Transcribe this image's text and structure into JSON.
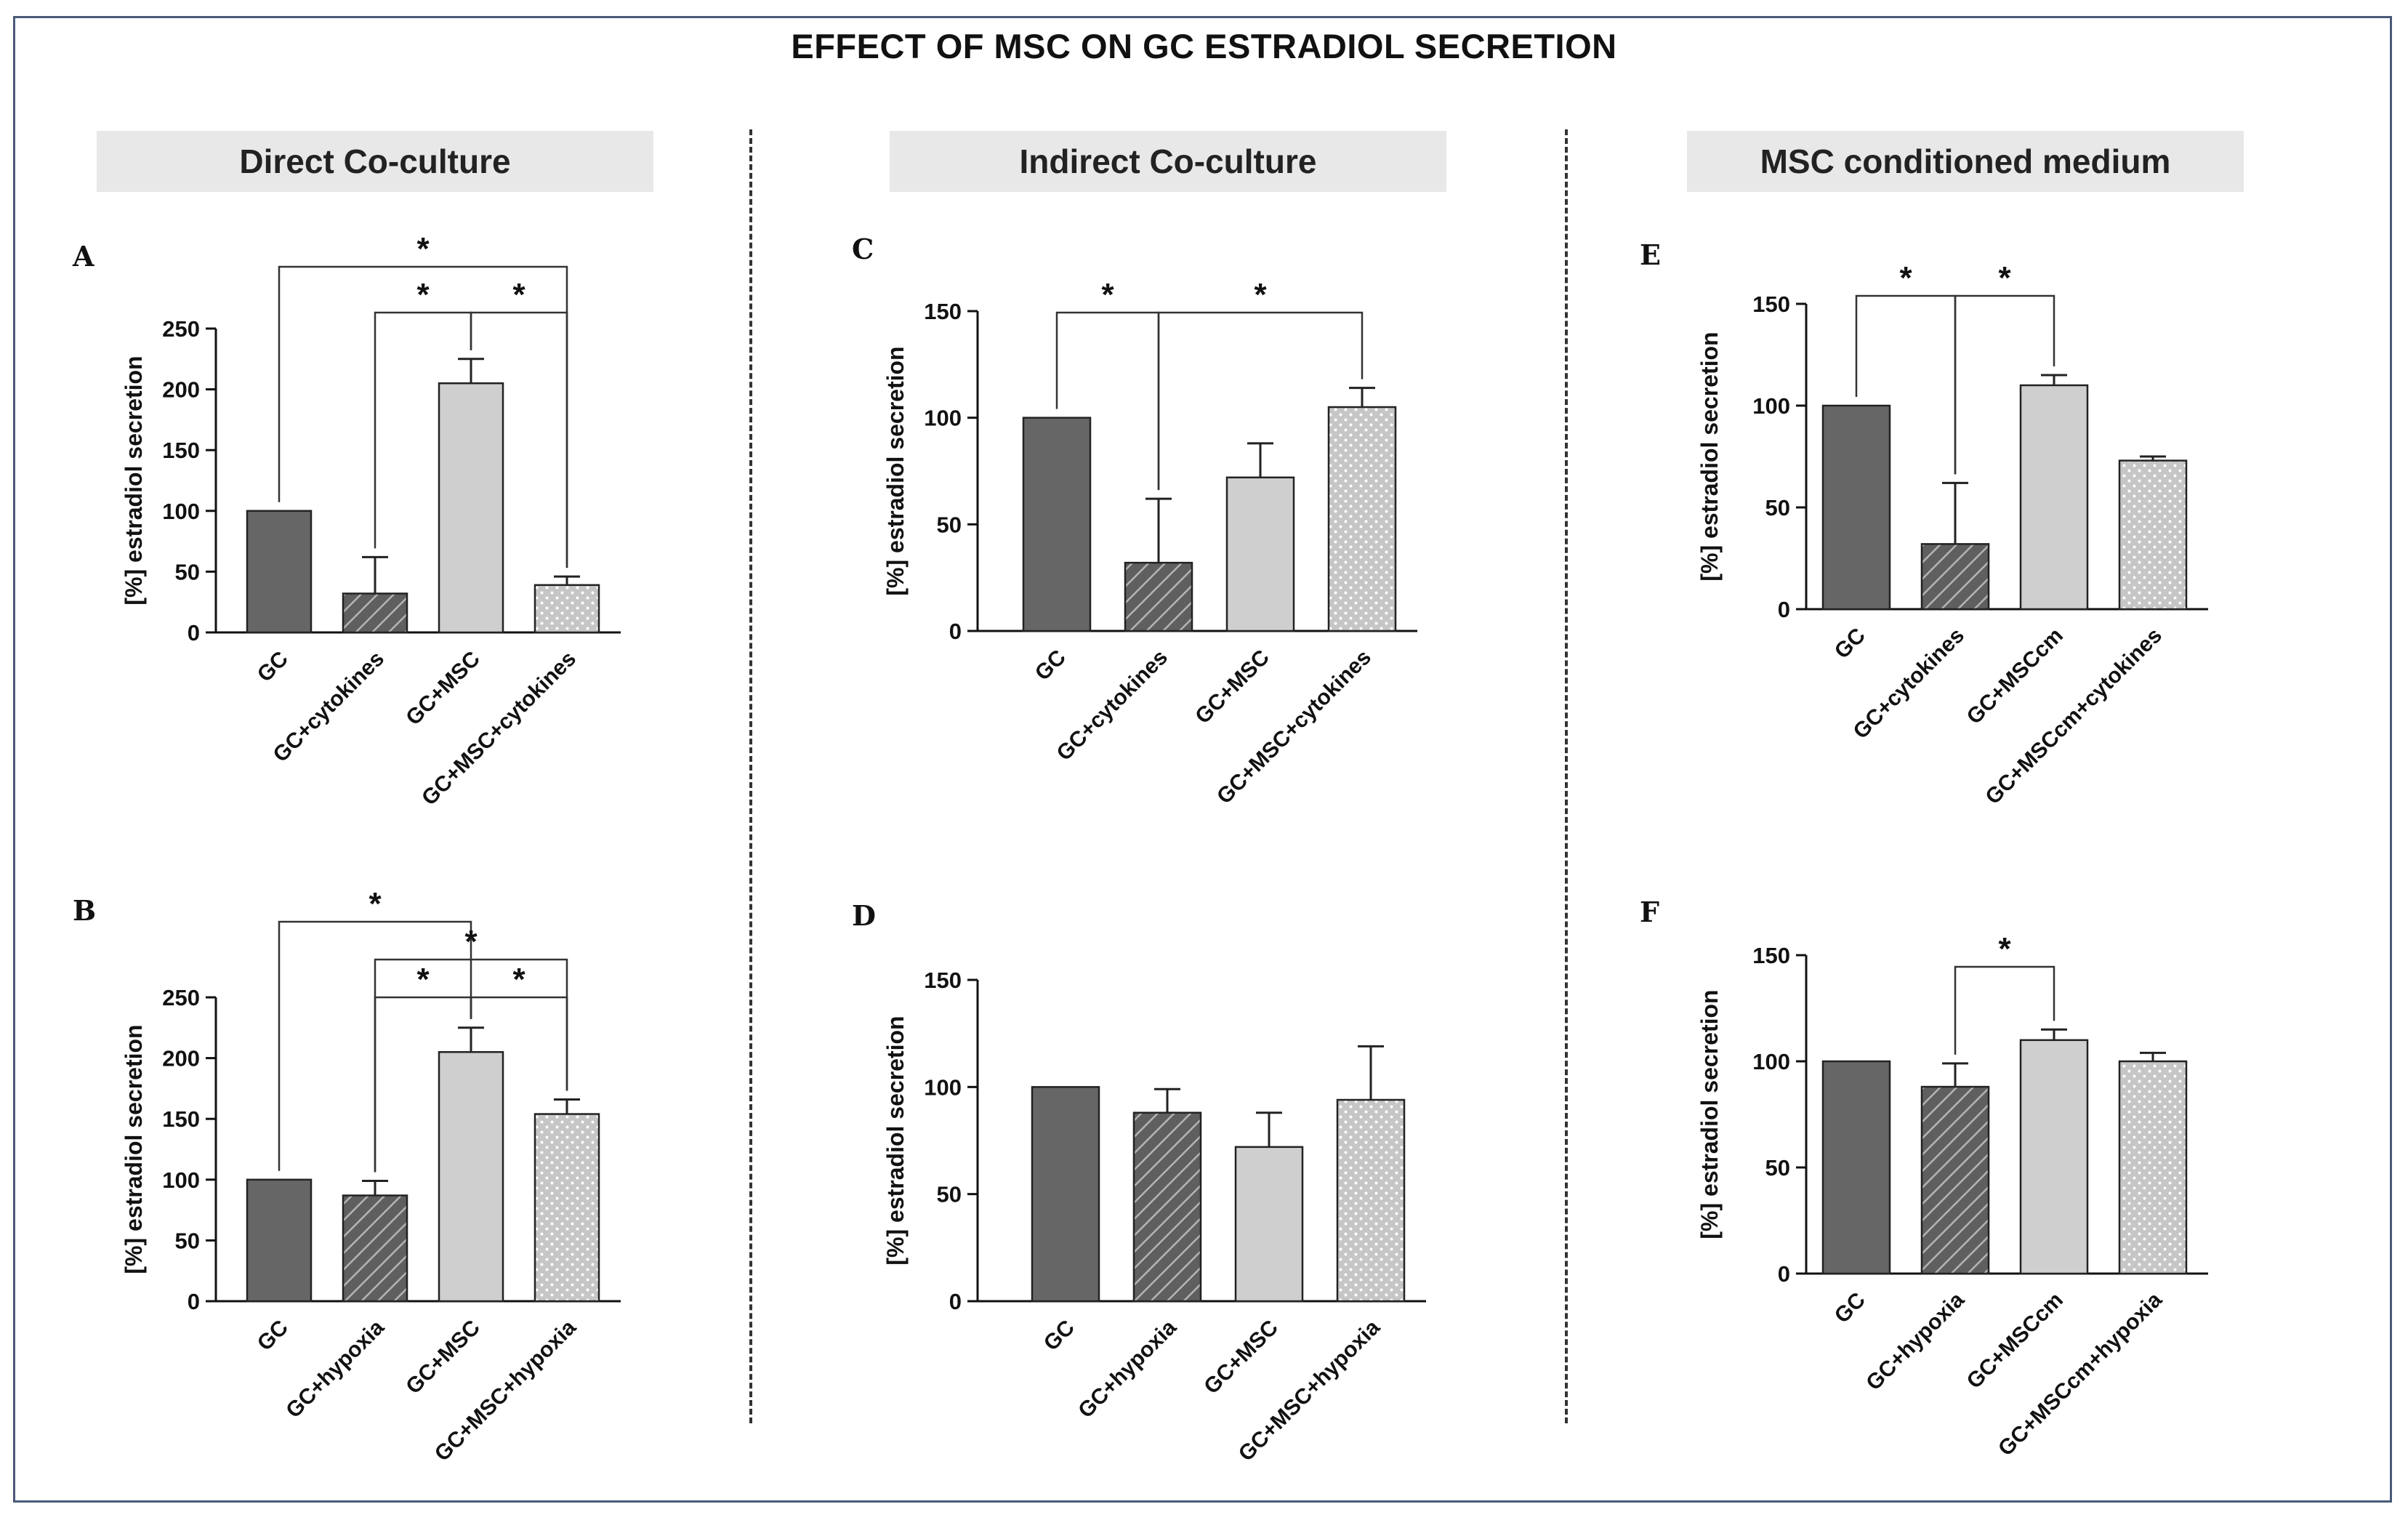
{
  "title": "EFFECT OF MSC ON GC ESTRADIOL SECRETION",
  "sections": [
    "Direct Co-culture",
    "Indirect Co-culture",
    "MSC conditioned medium"
  ],
  "chart_data": [
    {
      "panel": "A",
      "type": "bar",
      "ylabel": "[%] estradiol secretion",
      "ylim": [
        0,
        250
      ],
      "yticks": [
        0,
        50,
        100,
        150,
        200,
        250
      ],
      "categories": [
        "GC",
        "GC+cytokines",
        "GC+MSC",
        "GC+MSC+cytokines"
      ],
      "values": [
        100,
        32,
        205,
        39
      ],
      "errors": [
        0,
        30,
        20,
        7
      ],
      "significance": [
        {
          "from": 0,
          "to": 3,
          "label": "*"
        },
        {
          "from": 1,
          "to": 2,
          "label": "*"
        },
        {
          "from": 2,
          "to": 3,
          "label": "*"
        }
      ]
    },
    {
      "panel": "B",
      "type": "bar",
      "ylabel": "[%] estradiol secretion",
      "ylim": [
        0,
        250
      ],
      "yticks": [
        0,
        50,
        100,
        150,
        200,
        250
      ],
      "categories": [
        "GC",
        "GC+hypoxia",
        "GC+MSC",
        "GC+MSC+hypoxia"
      ],
      "values": [
        100,
        87,
        205,
        154
      ],
      "errors": [
        0,
        12,
        20,
        12
      ],
      "significance": [
        {
          "from": 0,
          "to": 2,
          "label": "*"
        },
        {
          "from": 1,
          "to": 3,
          "label": "*"
        },
        {
          "from": 1,
          "to": 2,
          "label": "*"
        },
        {
          "from": 2,
          "to": 3,
          "label": "*"
        }
      ]
    },
    {
      "panel": "C",
      "type": "bar",
      "ylabel": "[%] estradiol secretion",
      "ylim": [
        0,
        150
      ],
      "yticks": [
        0,
        50,
        100,
        150
      ],
      "categories": [
        "GC",
        "GC+cytokines",
        "GC+MSC",
        "GC+MSC+cytokines"
      ],
      "values": [
        100,
        32,
        72,
        105
      ],
      "errors": [
        0,
        30,
        16,
        9
      ],
      "significance": [
        {
          "from": 0,
          "to": 1,
          "label": "*"
        },
        {
          "from": 1,
          "to": 3,
          "label": "*"
        }
      ]
    },
    {
      "panel": "D",
      "type": "bar",
      "ylabel": "[%] estradiol secretion",
      "ylim": [
        0,
        150
      ],
      "yticks": [
        0,
        50,
        100,
        150
      ],
      "categories": [
        "GC",
        "GC+hypoxia",
        "GC+MSC",
        "GC+MSC+hypoxia"
      ],
      "values": [
        100,
        88,
        72,
        94
      ],
      "errors": [
        0,
        11,
        16,
        25
      ],
      "significance": []
    },
    {
      "panel": "E",
      "type": "bar",
      "ylabel": "[%] estradiol secretion",
      "ylim": [
        0,
        150
      ],
      "yticks": [
        0,
        50,
        100,
        150
      ],
      "categories": [
        "GC",
        "GC+cytokines",
        "GC+MSCcm",
        "GC+MSCcm+cytokines"
      ],
      "values": [
        100,
        32,
        110,
        73
      ],
      "errors": [
        0,
        30,
        5,
        2
      ],
      "significance": [
        {
          "from": 0,
          "to": 1,
          "label": "*"
        },
        {
          "from": 1,
          "to": 2,
          "label": "*"
        }
      ]
    },
    {
      "panel": "F",
      "type": "bar",
      "ylabel": "[%] estradiol secretion",
      "ylim": [
        0,
        150
      ],
      "yticks": [
        0,
        50,
        100,
        150
      ],
      "categories": [
        "GC",
        "GC+hypoxia",
        "GC+MSCcm",
        "GC+MSCcm+hypoxia"
      ],
      "values": [
        100,
        88,
        110,
        100
      ],
      "errors": [
        0,
        11,
        5,
        4
      ],
      "significance": [
        {
          "from": 1,
          "to": 2,
          "label": "*"
        }
      ]
    }
  ]
}
